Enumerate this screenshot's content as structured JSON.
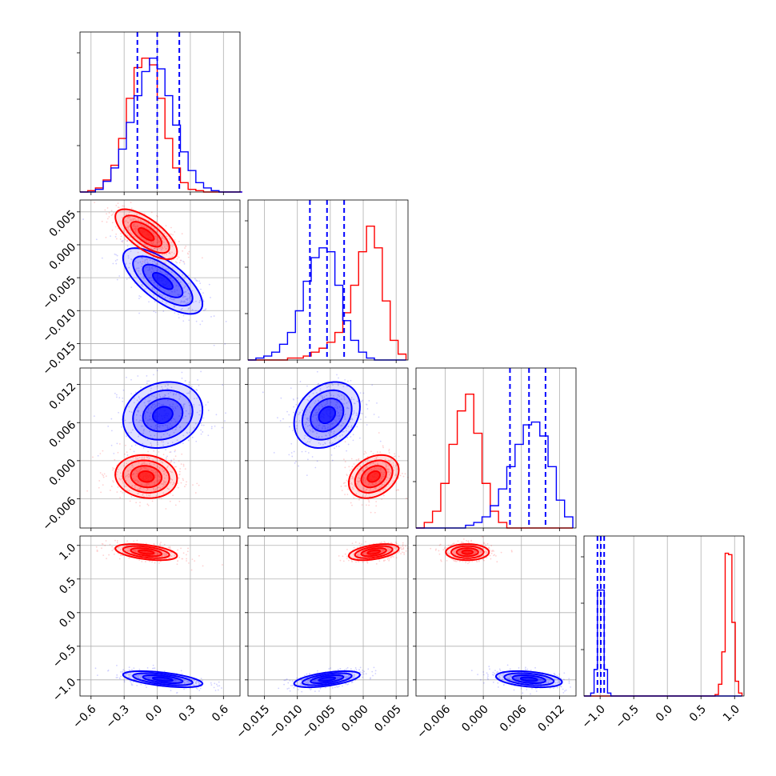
{
  "chart_data": {
    "type": "corner",
    "n_params": 4,
    "grid": true,
    "colors": {
      "series_a": "#0000ff",
      "series_b": "#ff0000"
    },
    "axes": [
      {
        "range": [
          -0.7,
          0.75
        ],
        "ticks": [
          -0.6,
          -0.3,
          0.0,
          0.3,
          0.6
        ],
        "tick_labels": [
          "−0.6",
          "−0.3",
          "0.0",
          "0.3",
          "0.6"
        ]
      },
      {
        "range": [
          -0.0175,
          0.0068
        ],
        "ticks": [
          -0.015,
          -0.01,
          -0.005,
          0.0,
          0.005
        ],
        "tick_labels": [
          "−0.015",
          "−0.010",
          "−0.005",
          "0.000",
          "0.005"
        ]
      },
      {
        "range": [
          -0.0106,
          0.0146
        ],
        "ticks": [
          -0.006,
          0.0,
          0.006,
          0.012
        ],
        "tick_labels": [
          "−0.006",
          "0.000",
          "0.006",
          "0.012"
        ]
      },
      {
        "range": [
          -1.24,
          1.14
        ],
        "ticks": [
          -1.0,
          -0.5,
          0.0,
          0.5,
          1.0
        ],
        "tick_labels": [
          "−1.0",
          "−0.5",
          "0.0",
          "0.5",
          "1.0"
        ]
      }
    ],
    "series": [
      {
        "color": "#0000ff",
        "quantiles": [
          [
            -0.18,
            0.0,
            0.2
          ],
          [
            -0.0081,
            -0.0055,
            -0.0029
          ],
          [
            0.0042,
            0.0072,
            0.0098
          ],
          [
            -1.04,
            -0.99,
            -0.94
          ]
        ],
        "means": [
          0.05,
          -0.0055,
          0.0072,
          -0.99
        ],
        "sigmas": [
          0.18,
          0.0025,
          0.0026,
          0.06
        ],
        "corr": [
          [
            0,
            1,
            -0.7
          ],
          [
            0,
            2,
            0.15
          ],
          [
            0,
            3,
            -0.55
          ],
          [
            1,
            2,
            0.25
          ],
          [
            1,
            3,
            0.55
          ],
          [
            2,
            3,
            -0.35
          ]
        ]
      },
      {
        "color": "#ff0000",
        "quantiles": null,
        "means": [
          -0.1,
          0.0016,
          -0.0025,
          0.9
        ],
        "sigmas": [
          0.14,
          0.0019,
          0.0017,
          0.06
        ],
        "corr": [
          [
            0,
            1,
            -0.7
          ],
          [
            0,
            2,
            -0.1
          ],
          [
            0,
            3,
            -0.45
          ],
          [
            1,
            2,
            0.3
          ],
          [
            1,
            3,
            0.45
          ],
          [
            2,
            3,
            0.0
          ]
        ]
      }
    ],
    "histograms": [
      {
        "edges": [
          -0.7,
          -0.63,
          -0.56,
          -0.49,
          -0.42,
          -0.35,
          -0.28,
          -0.21,
          -0.14,
          -0.07,
          0.0,
          0.07,
          0.14,
          0.21,
          0.28,
          0.35,
          0.42,
          0.49,
          0.56,
          0.63,
          0.7,
          0.77
        ],
        "blue": [
          0,
          0,
          2,
          8,
          18,
          32,
          52,
          72,
          90,
          100,
          92,
          72,
          50,
          30,
          16,
          7,
          3,
          1,
          0,
          0,
          0
        ],
        "red": [
          0,
          1,
          3,
          9,
          20,
          40,
          70,
          93,
          100,
          95,
          70,
          40,
          18,
          7,
          2,
          1,
          0,
          0,
          0,
          0,
          0
        ],
        "ymax": 110
      },
      {
        "edges": [
          -0.0175,
          -0.0163,
          -0.0151,
          -0.0139,
          -0.0127,
          -0.0115,
          -0.0103,
          -0.0091,
          -0.0079,
          -0.0067,
          -0.0055,
          -0.0043,
          -0.0031,
          -0.0019,
          -0.0007,
          0.0005,
          0.0017,
          0.0029,
          0.0041,
          0.0053,
          0.0065
        ],
        "blue": [
          0,
          1,
          2,
          4,
          8,
          14,
          25,
          40,
          52,
          57,
          55,
          38,
          20,
          10,
          4,
          1,
          0,
          0,
          0,
          0
        ],
        "red": [
          0,
          0,
          0,
          0,
          0,
          1,
          1,
          2,
          4,
          6,
          9,
          14,
          24,
          38,
          55,
          68,
          57,
          30,
          10,
          3
        ]
      },
      {
        "edges": [
          -0.0106,
          -0.0093,
          -0.008,
          -0.0067,
          -0.0054,
          -0.0041,
          -0.0028,
          -0.0015,
          -0.0002,
          0.0011,
          0.0024,
          0.0037,
          0.005,
          0.0063,
          0.0076,
          0.0089,
          0.0102,
          0.0115,
          0.0128,
          0.0141
        ],
        "blue": [
          0,
          0,
          0,
          0,
          0,
          0,
          1,
          2,
          4,
          8,
          14,
          22,
          30,
          37,
          38,
          33,
          22,
          10,
          4
        ],
        "red": [
          0,
          2,
          6,
          16,
          30,
          42,
          48,
          34,
          16,
          6,
          2,
          0,
          0,
          0,
          0,
          0,
          0,
          0,
          0
        ]
      },
      {
        "edges": [
          -1.24,
          -1.19,
          -1.14,
          -1.09,
          -1.04,
          -0.99,
          -0.94,
          -0.89,
          -0.84,
          -0.79,
          -0.74,
          -0.69,
          -0.64,
          -0.59,
          -0.54,
          -0.49,
          -0.44,
          -0.39,
          -0.34,
          -0.29,
          -0.24,
          -0.19,
          -0.14,
          -0.09,
          -0.04,
          0.01,
          0.06,
          0.11,
          0.16,
          0.21,
          0.26,
          0.31,
          0.36,
          0.41,
          0.46,
          0.51,
          0.56,
          0.61,
          0.66,
          0.71,
          0.76,
          0.81,
          0.86,
          0.91,
          0.96,
          1.01,
          1.06,
          1.11
        ],
        "blue": [
          0,
          0,
          2,
          18,
          72,
          72,
          18,
          2,
          0,
          0,
          0,
          0,
          0,
          0,
          0,
          0,
          0,
          0,
          0,
          0,
          0,
          0,
          0,
          0,
          0,
          0,
          0,
          0,
          0,
          0,
          0,
          0,
          0,
          0,
          0,
          0,
          0,
          0,
          0,
          0,
          0,
          0,
          0,
          0,
          0,
          0,
          0
        ],
        "red": [
          0,
          0,
          0,
          0,
          0,
          0,
          0,
          0,
          0,
          0,
          0,
          0,
          0,
          0,
          0,
          0,
          0,
          0,
          0,
          0,
          0,
          0,
          0,
          0,
          0,
          0,
          0,
          0,
          0,
          0,
          0,
          0,
          0,
          0,
          0,
          0,
          0,
          0,
          0,
          1,
          8,
          30,
          97,
          96,
          50,
          10,
          2
        ],
        "ymax": 100
      }
    ]
  }
}
